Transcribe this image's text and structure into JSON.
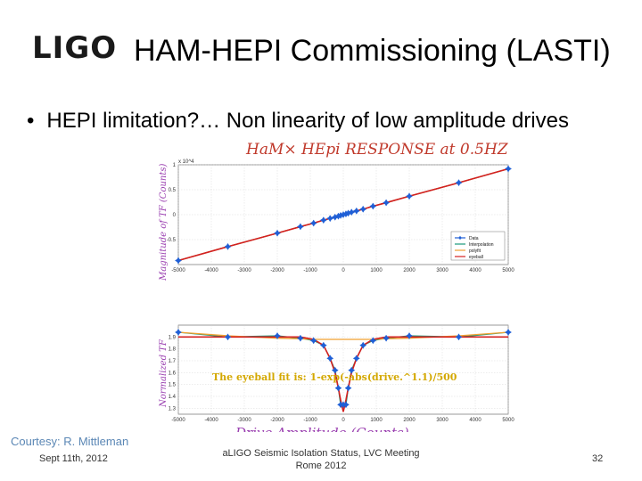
{
  "header": {
    "logo_text": "LIGO",
    "title": "HAM-HEPI  Commissioning (LASTI)"
  },
  "bullet": {
    "marker": "•",
    "text": "HEPI limitation?… Non linearity of low amplitude drives"
  },
  "figure": {
    "handwritten_title": "HaM× HEpi RESPONSE at 0.5HZ",
    "fit_annotation": "The eyeball fit is: 1-exp(-abs(drive.^1.1)/500",
    "xlabel": "Drive Amplitude (Counts)"
  },
  "footer": {
    "courtesy": "Courtesy: R. Mittleman",
    "date": "Sept 11th, 2012",
    "event_line1": "aLIGO Seismic Isolation Status, LVC Meeting",
    "event_line2": "Rome 2012",
    "page_number": "32"
  },
  "chart_data": [
    {
      "type": "line",
      "ylabel": "Magnitude of TF (Counts)",
      "y_scale_label": "x 10^4",
      "xlim": [
        -5000,
        5000
      ],
      "ylim": [
        -1,
        1
      ],
      "xticks": [
        -5000,
        -4000,
        -3000,
        -2000,
        -1000,
        0,
        1000,
        2000,
        3000,
        4000,
        5000
      ],
      "yticks": [
        -0.5,
        0,
        0.5,
        1
      ],
      "grid": true,
      "legend_position": "bottom-right",
      "x": [
        -5000,
        -3500,
        -2000,
        -1300,
        -900,
        -600,
        -400,
        -250,
        -150,
        -80,
        0,
        80,
        150,
        250,
        400,
        600,
        900,
        1300,
        2000,
        3500,
        5000
      ],
      "series": [
        {
          "name": "Data",
          "color": "#1f5fd6",
          "marker": "star",
          "y": [
            -0.92,
            -0.64,
            -0.37,
            -0.24,
            -0.17,
            -0.11,
            -0.075,
            -0.05,
            -0.03,
            -0.015,
            0,
            0.015,
            0.03,
            0.05,
            0.075,
            0.11,
            0.17,
            0.24,
            0.37,
            0.64,
            0.92
          ]
        },
        {
          "name": "Interpolation",
          "color": "#1a9a7a",
          "y": [
            -0.92,
            -0.64,
            -0.37,
            -0.24,
            -0.17,
            -0.11,
            -0.075,
            -0.05,
            -0.03,
            -0.015,
            0,
            0.015,
            0.03,
            0.05,
            0.075,
            0.11,
            0.17,
            0.24,
            0.37,
            0.64,
            0.92
          ]
        },
        {
          "name": "polyfit",
          "color": "#f0a030",
          "y": [
            -0.92,
            -0.64,
            -0.37,
            -0.24,
            -0.17,
            -0.11,
            -0.075,
            -0.05,
            -0.03,
            -0.015,
            0,
            0.015,
            0.03,
            0.05,
            0.075,
            0.11,
            0.17,
            0.24,
            0.37,
            0.64,
            0.92
          ]
        },
        {
          "name": "eyeball",
          "color": "#d42020",
          "y": [
            -0.92,
            -0.64,
            -0.37,
            -0.24,
            -0.17,
            -0.11,
            -0.075,
            -0.05,
            -0.03,
            -0.015,
            0,
            0.015,
            0.03,
            0.05,
            0.075,
            0.11,
            0.17,
            0.24,
            0.37,
            0.64,
            0.92
          ]
        }
      ]
    },
    {
      "type": "line",
      "ylabel": "Normalized TF",
      "xlim": [
        -5000,
        5000
      ],
      "ylim": [
        1.25,
        2.0
      ],
      "xticks": [
        -5000,
        -4000,
        -3000,
        -2000,
        -1000,
        0,
        1000,
        2000,
        3000,
        4000,
        5000
      ],
      "yticks": [
        1.3,
        1.4,
        1.5,
        1.6,
        1.7,
        1.8,
        1.9
      ],
      "grid": true,
      "x": [
        -5000,
        -3500,
        -2000,
        -1300,
        -900,
        -600,
        -400,
        -250,
        -150,
        -80,
        0,
        80,
        150,
        250,
        400,
        600,
        900,
        1300,
        2000,
        3500,
        5000
      ],
      "series": [
        {
          "name": "Data",
          "color": "#1f5fd6",
          "marker": "star",
          "y": [
            1.94,
            1.9,
            1.91,
            1.89,
            1.87,
            1.83,
            1.72,
            1.62,
            1.47,
            1.33,
            1.33,
            1.33,
            1.47,
            1.62,
            1.72,
            1.83,
            1.87,
            1.89,
            1.91,
            1.9,
            1.94
          ]
        },
        {
          "name": "Interpolation",
          "color": "#1a9a7a",
          "y": [
            1.94,
            1.9,
            1.91,
            1.89,
            1.87,
            1.83,
            1.72,
            1.62,
            1.47,
            1.33,
            1.33,
            1.33,
            1.47,
            1.62,
            1.72,
            1.83,
            1.87,
            1.89,
            1.91,
            1.9,
            1.94
          ]
        },
        {
          "name": "polyfit",
          "color": "#f0a030",
          "y": [
            1.94,
            1.91,
            1.89,
            1.885,
            1.88,
            1.88,
            1.88,
            1.88,
            1.88,
            1.88,
            1.88,
            1.88,
            1.88,
            1.88,
            1.88,
            1.88,
            1.88,
            1.885,
            1.89,
            1.91,
            1.94
          ]
        },
        {
          "name": "eyeball",
          "color": "#d42020",
          "y": [
            1.9,
            1.9,
            1.9,
            1.9,
            1.88,
            1.83,
            1.72,
            1.6,
            1.47,
            1.37,
            1.27,
            1.37,
            1.47,
            1.6,
            1.72,
            1.83,
            1.88,
            1.9,
            1.9,
            1.9,
            1.9
          ]
        }
      ]
    }
  ]
}
